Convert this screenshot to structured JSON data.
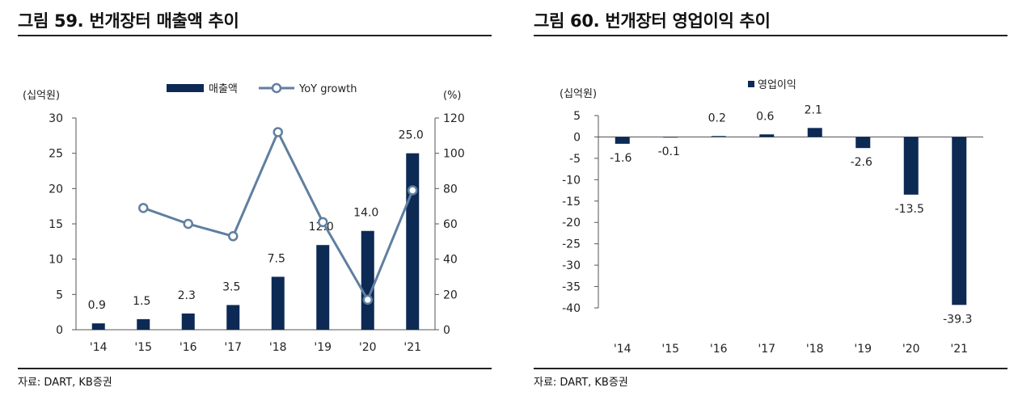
{
  "colors": {
    "bar": "#0d2a55",
    "line": "#5f7fa0",
    "axis": "#555555",
    "text": "#222222"
  },
  "left": {
    "title": "그림 59. 번개장터 매출액 추이",
    "source": "자료: DART, KB증권",
    "chart_data": {
      "type": "bar",
      "categories": [
        "'14",
        "'15",
        "'16",
        "'17",
        "'18",
        "'19",
        "'20",
        "'21"
      ],
      "series": [
        {
          "name": "매출액",
          "type": "bar",
          "axis": "left",
          "values": [
            0.9,
            1.5,
            2.3,
            3.5,
            7.5,
            12.0,
            14.0,
            25.0
          ],
          "labels": [
            "0.9",
            "1.5",
            "2.3",
            "3.5",
            "7.5",
            "12.0",
            "14.0",
            "25.0"
          ]
        },
        {
          "name": "YoY growth",
          "type": "line",
          "axis": "right",
          "values": [
            null,
            69,
            60,
            53,
            112,
            61,
            17,
            79
          ]
        }
      ],
      "y_left": {
        "unit": "(십억원)",
        "ticks": [
          "0",
          "5",
          "10",
          "15",
          "20",
          "25",
          "30"
        ],
        "ylim": [
          0,
          30
        ]
      },
      "y_right": {
        "unit": "(%)",
        "ticks": [
          "0",
          "20",
          "40",
          "60",
          "80",
          "100",
          "120"
        ],
        "ylim": [
          0,
          120
        ]
      },
      "legend": "top"
    }
  },
  "right": {
    "title": "그림 60. 번개장터 영업이익 추이",
    "source": "자료: DART, KB증권",
    "chart_data": {
      "type": "bar",
      "categories": [
        "'14",
        "'15",
        "'16",
        "'17",
        "'18",
        "'19",
        "'20",
        "'21"
      ],
      "series": [
        {
          "name": "영업이익",
          "values": [
            -1.6,
            -0.1,
            0.2,
            0.6,
            2.1,
            -2.6,
            -13.5,
            -39.3
          ],
          "labels": [
            "-1.6",
            "-0.1",
            "0.2",
            "0.6",
            "2.1",
            "-2.6",
            "-13.5",
            "-39.3"
          ]
        }
      ],
      "y_left": {
        "unit": "(십억원)",
        "ticks": [
          "5",
          "0",
          "-5",
          "-10",
          "-15",
          "-20",
          "-25",
          "-30",
          "-35",
          "-40"
        ],
        "ylim": [
          -40,
          5
        ]
      },
      "legend": "top"
    }
  }
}
